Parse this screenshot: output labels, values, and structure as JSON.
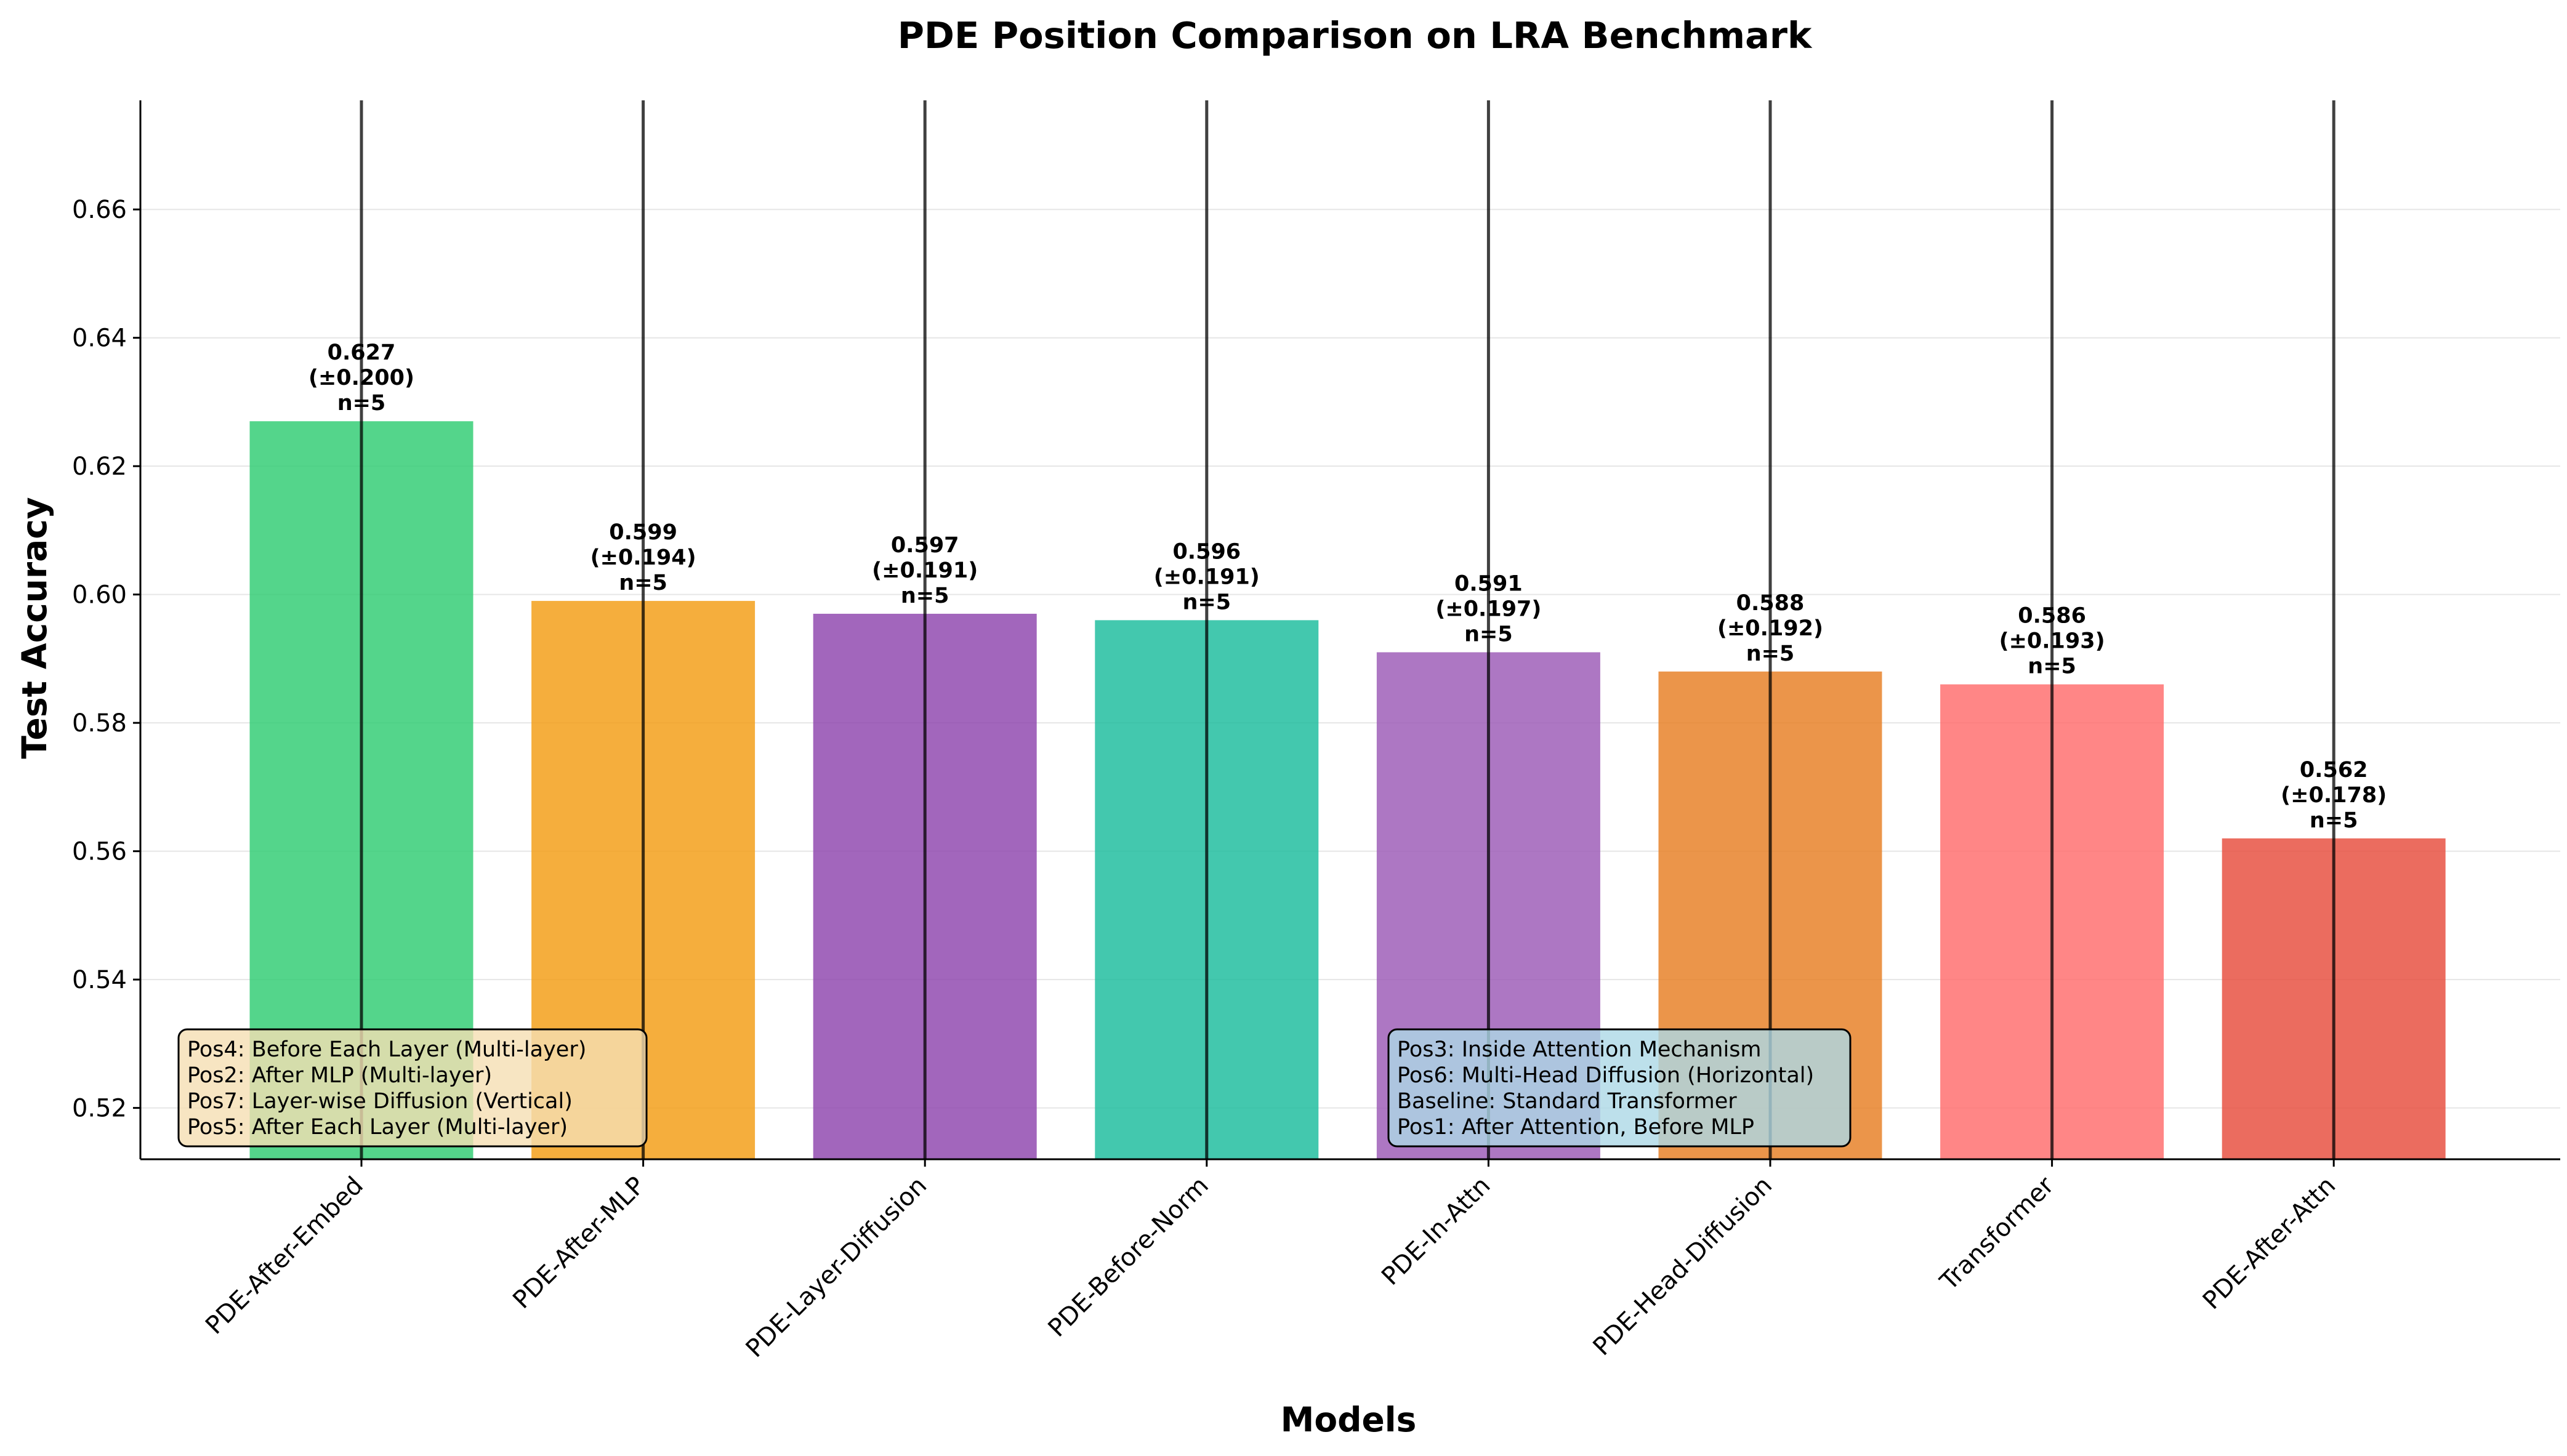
{
  "chart_data": {
    "type": "bar",
    "title": "PDE Position Comparison on LRA Benchmark",
    "xlabel": "Models",
    "ylabel": "Test Accuracy",
    "ylim": [
      0.512,
      0.677
    ],
    "yticks": [
      0.52,
      0.54,
      0.56,
      0.58,
      0.6,
      0.62,
      0.64,
      0.66
    ],
    "ytick_labels": [
      "0.52",
      "0.54",
      "0.56",
      "0.58",
      "0.60",
      "0.62",
      "0.64",
      "0.66"
    ],
    "grid": "horizontal",
    "categories": [
      "PDE-After-Embed",
      "PDE-After-MLP",
      "PDE-Layer-Diffusion",
      "PDE-Before-Norm",
      "PDE-In-Attn",
      "PDE-Head-Diffusion",
      "Transformer",
      "PDE-After-Attn"
    ],
    "values": [
      0.627,
      0.599,
      0.597,
      0.596,
      0.591,
      0.588,
      0.586,
      0.562
    ],
    "errors": [
      0.2,
      0.194,
      0.191,
      0.191,
      0.197,
      0.192,
      0.193,
      0.178
    ],
    "value_labels": [
      "0.627",
      "0.599",
      "0.597",
      "0.596",
      "0.591",
      "0.588",
      "0.586",
      "0.562"
    ],
    "error_labels": [
      "(±0.200)",
      "(±0.194)",
      "(±0.191)",
      "(±0.191)",
      "(±0.197)",
      "(±0.192)",
      "(±0.193)",
      "(±0.178)"
    ],
    "n_labels": [
      "n=5",
      "n=5",
      "n=5",
      "n=5",
      "n=5",
      "n=5",
      "n=5",
      "n=5"
    ],
    "colors": [
      "#2ecc71",
      "#f39c12",
      "#8e44ad",
      "#1abc9c",
      "#9b59b6",
      "#e67e22",
      "#ff6b6b",
      "#e74c3c"
    ],
    "legends": [
      {
        "position": "bottom-left",
        "lines": [
          "Pos4: Before Each Layer (Multi-layer)",
          "Pos2: After MLP (Multi-layer)",
          "Pos7: Layer-wise Diffusion (Vertical)",
          "Pos5: After Each Layer (Multi-layer)"
        ],
        "background": "#f5deb3"
      },
      {
        "position": "bottom-center",
        "lines": [
          "Pos3: Inside Attention Mechanism",
          "Pos6: Multi-Head Diffusion (Horizontal)",
          "Baseline: Standard Transformer",
          "Pos1: After Attention, Before MLP"
        ],
        "background": "#add8e6"
      }
    ]
  }
}
